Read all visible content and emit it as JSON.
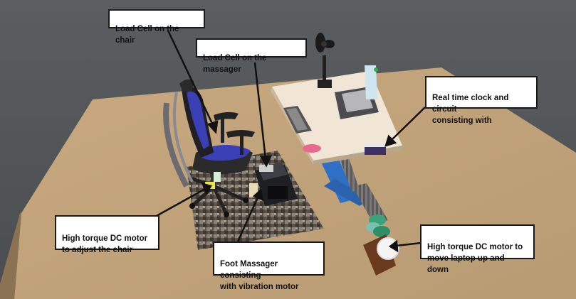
{
  "annotations": {
    "load_cell_chair": "Load Cell on the chair",
    "load_cell_massager": "Load Cell on the massager",
    "rtc_circuit": "Real time clock and circuit\nconsisting with",
    "dc_motor_chair": "High torque DC motor\nto adjust the chair",
    "foot_massager": "Foot  Massager consisting\nwith vibration motor",
    "dc_motor_laptop": "High torque DC motor to\nmove laptop up and down"
  },
  "colors": {
    "background_top": "#525659",
    "floor": "#c4a47c",
    "chair_accent": "#3a3fb5",
    "desk_top": "#efe3d2",
    "desk_leg": "#2f6fc4",
    "spring_green": "#3aa17a",
    "box_brown": "#6a3a1e"
  }
}
